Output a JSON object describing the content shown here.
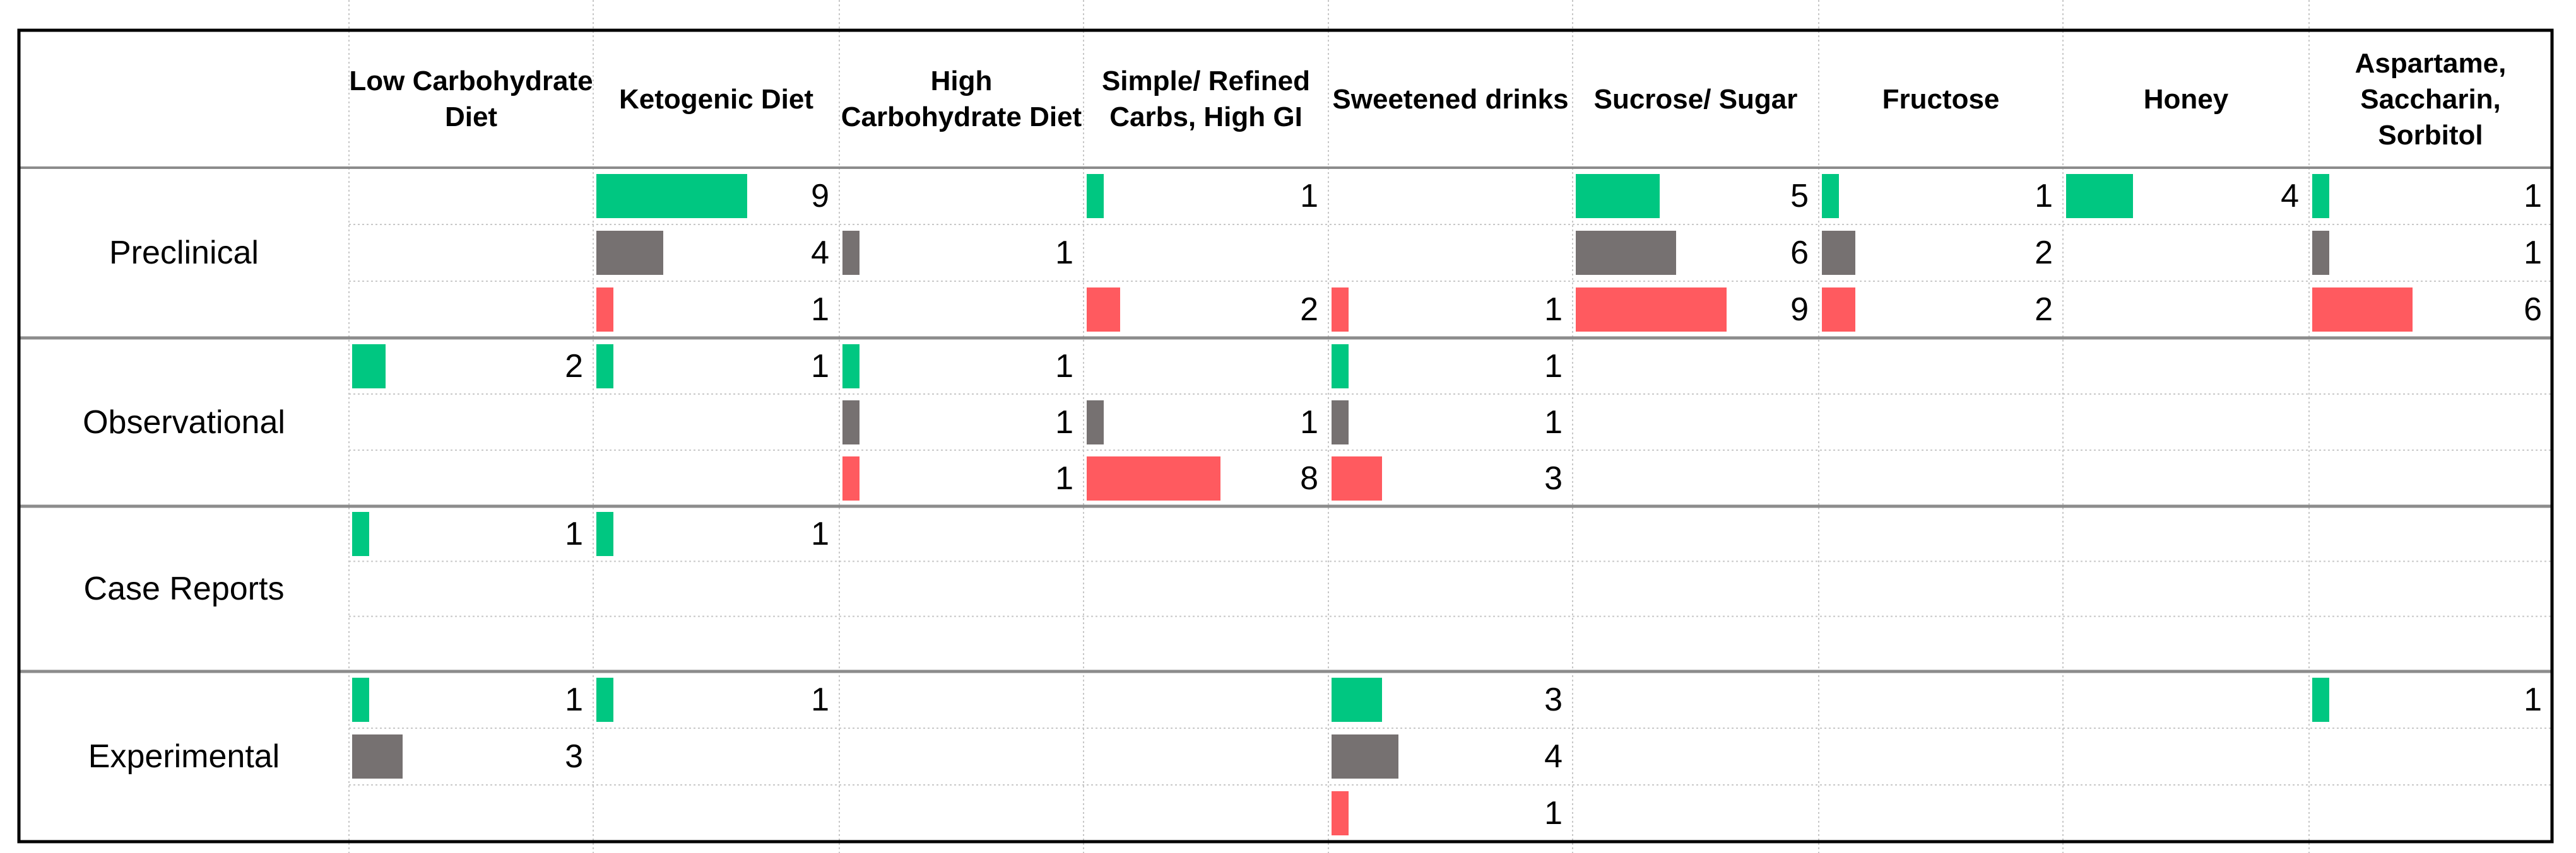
{
  "colors": {
    "Preclinical_a": "#00c781",
    "Preclinical_b": "#767171",
    "Preclinical_c": "#ff5a5f",
    "grid": "#c8c8c8",
    "border": "#000000"
  },
  "chart_data": {
    "type": "table",
    "title": "",
    "columns": [
      "Low Carbohydrate Diet",
      "Ketogenic Diet",
      "High Carbohydrate Diet",
      "Simple/ Refined Carbs, High GI",
      "Sweetened drinks",
      "Sucrose/ Sugar",
      "Fructose",
      "Honey",
      "Aspartame, Saccharin, Sorbitol"
    ],
    "groups": [
      {
        "name": "Preclinical",
        "rows": [
          {
            "color": "#00c781",
            "values": [
              null,
              9,
              null,
              1,
              null,
              5,
              1,
              4,
              1
            ]
          },
          {
            "color": "#767171",
            "values": [
              null,
              4,
              1,
              null,
              null,
              6,
              2,
              null,
              1
            ]
          },
          {
            "color": "#ff5a5f",
            "values": [
              null,
              1,
              null,
              2,
              1,
              9,
              2,
              null,
              6
            ]
          }
        ]
      },
      {
        "name": "Observational",
        "rows": [
          {
            "color": "#00c781",
            "values": [
              2,
              1,
              1,
              null,
              1,
              null,
              null,
              null,
              null
            ]
          },
          {
            "color": "#767171",
            "values": [
              null,
              null,
              1,
              1,
              1,
              null,
              null,
              null,
              null
            ]
          },
          {
            "color": "#ff5a5f",
            "values": [
              null,
              null,
              1,
              8,
              3,
              null,
              null,
              null,
              null
            ]
          }
        ]
      },
      {
        "name": "Case Reports",
        "rows": [
          {
            "color": "#00c781",
            "values": [
              1,
              1,
              null,
              null,
              null,
              null,
              null,
              null,
              null
            ]
          },
          {
            "color": "#767171",
            "values": [
              null,
              null,
              null,
              null,
              null,
              null,
              null,
              null,
              null
            ]
          },
          {
            "color": "#ff5a5f",
            "values": [
              null,
              null,
              null,
              null,
              null,
              null,
              null,
              null,
              null
            ]
          }
        ]
      },
      {
        "name": "Experimental",
        "rows": [
          {
            "color": "#00c781",
            "values": [
              1,
              1,
              null,
              null,
              3,
              null,
              null,
              null,
              1
            ]
          },
          {
            "color": "#767171",
            "values": [
              3,
              null,
              null,
              null,
              4,
              null,
              null,
              null,
              null
            ]
          },
          {
            "color": "#ff5a5f",
            "values": [
              null,
              null,
              null,
              null,
              1,
              null,
              null,
              null,
              null
            ]
          }
        ]
      }
    ],
    "bar_scale_max": 10
  }
}
